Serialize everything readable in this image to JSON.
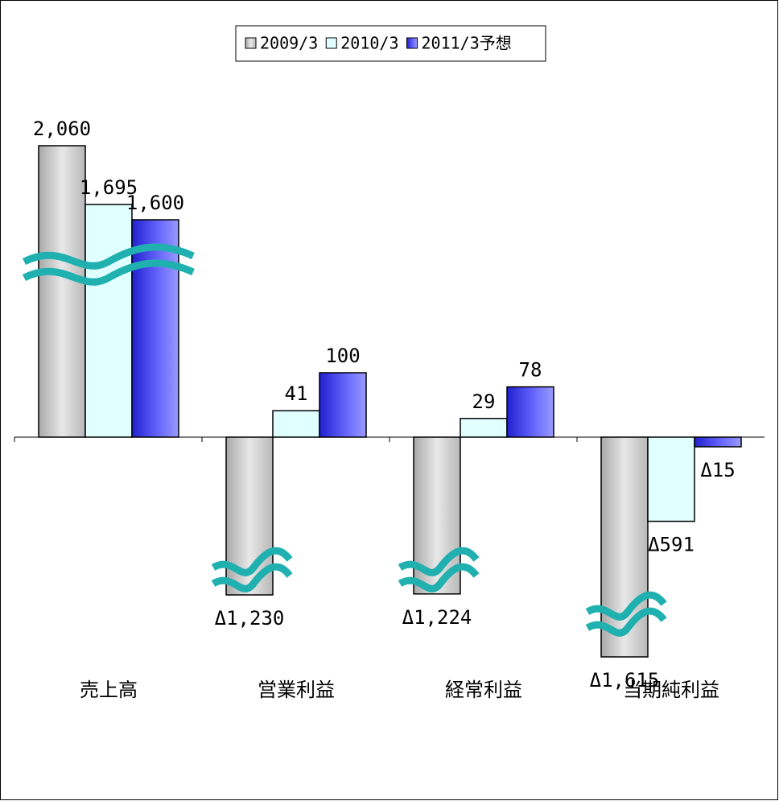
{
  "chart_data": {
    "type": "bar",
    "categories": [
      "売上高",
      "営業利益",
      "経常利益",
      "当期純利益"
    ],
    "series": [
      {
        "name": "2009/3",
        "color": "#c8c8c8",
        "values": [
          2060,
          -1230,
          -1224,
          -1615
        ],
        "value_labels": [
          "2,060",
          "Δ1,230",
          "Δ1,224",
          "Δ1,615"
        ]
      },
      {
        "name": "2010/3",
        "color": "#e0ffff",
        "values": [
          1695,
          41,
          29,
          -591
        ],
        "value_labels": [
          "1,695",
          "41",
          "29",
          "Δ591"
        ]
      },
      {
        "name": "2011/3予想",
        "color": "#3c3cff",
        "values": [
          1600,
          100,
          78,
          -15
        ],
        "value_labels": [
          "1,600",
          "100",
          "78",
          "Δ15"
        ]
      }
    ],
    "legend": "top"
  }
}
